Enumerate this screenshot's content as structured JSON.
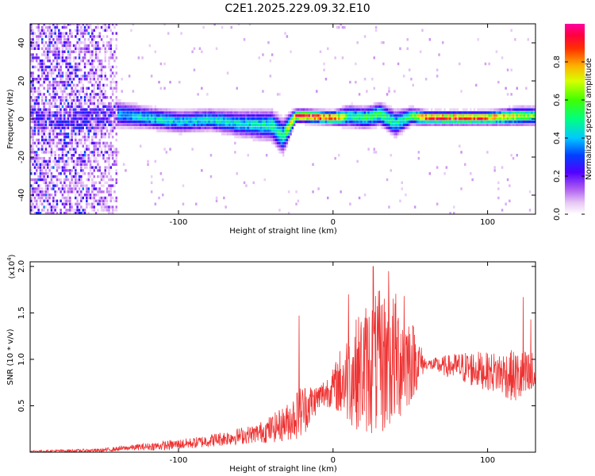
{
  "title": "C2E1.2025.229.09.32.E10",
  "chart_data": [
    {
      "type": "heatmap",
      "xlabel": "Height of straight line (km)",
      "ylabel": "Frequency (Hz)",
      "xlim": [
        -196,
        131
      ],
      "ylim": [
        -50,
        50
      ],
      "x_ticks": [
        -100,
        0,
        100
      ],
      "y_ticks": [
        -40,
        -20,
        0,
        20,
        40
      ],
      "colorbar": {
        "label": "Normalized spectral amplitude",
        "range": [
          0,
          1
        ],
        "ticks": [
          "0.0",
          "0.2",
          "0.4",
          "0.6",
          "0.8"
        ],
        "colormap": "white-violet-blue-cyan-green-yellow-red-magenta"
      },
      "signal_band": {
        "x": [
          -195,
          -150,
          -140,
          -120,
          -100,
          -80,
          -60,
          -40,
          -33,
          -25,
          -20,
          0,
          10,
          20,
          30,
          40,
          50,
          60,
          80,
          100,
          120,
          131
        ],
        "center_hz": [
          0,
          0,
          2,
          0,
          -2,
          -1,
          -3,
          -4,
          -10,
          1,
          1,
          0,
          1,
          0,
          2,
          -3,
          1,
          0,
          0,
          0,
          1,
          1
        ],
        "peak_amplitude": [
          0.25,
          0.3,
          0.4,
          0.45,
          0.45,
          0.45,
          0.45,
          0.5,
          0.5,
          0.9,
          0.95,
          0.95,
          0.5,
          0.55,
          0.6,
          0.5,
          0.55,
          0.95,
          0.95,
          0.9,
          0.7,
          0.6
        ],
        "spread_hz": [
          50,
          50,
          6,
          5,
          5,
          5,
          6,
          7,
          8,
          3,
          3,
          3,
          5,
          5,
          5,
          6,
          4,
          3,
          3,
          3,
          4,
          4
        ]
      }
    },
    {
      "type": "line",
      "xlabel": "Height of straight line (km)",
      "ylabel": "SNR (10 * v/v)",
      "scale_label": "(x10",
      "scale_exp": "4",
      "scale_close": ")",
      "xlim": [
        -196,
        131
      ],
      "ylim": [
        0,
        2.05
      ],
      "x_ticks": [
        -100,
        0,
        100
      ],
      "y_ticks": [
        "0.5",
        "1.0",
        "1.5",
        "2.0"
      ],
      "color": "#ee3333",
      "envelope": {
        "x": [
          -196,
          -150,
          -130,
          -110,
          -90,
          -70,
          -50,
          -40,
          -30,
          -20,
          -10,
          0,
          5,
          10,
          20,
          30,
          40,
          50,
          60,
          70,
          80,
          90,
          100,
          110,
          120,
          131
        ],
        "mean": [
          0.01,
          0.02,
          0.05,
          0.07,
          0.1,
          0.15,
          0.2,
          0.25,
          0.32,
          0.45,
          0.58,
          0.7,
          0.75,
          0.8,
          0.9,
          0.95,
          1.0,
          1.0,
          0.95,
          0.93,
          0.92,
          0.9,
          0.87,
          0.85,
          0.8,
          0.8
        ],
        "amplitude": [
          0.01,
          0.02,
          0.03,
          0.05,
          0.06,
          0.08,
          0.1,
          0.15,
          0.2,
          0.3,
          0.15,
          0.2,
          0.4,
          0.5,
          0.7,
          0.8,
          0.75,
          0.5,
          0.05,
          0.1,
          0.15,
          0.2,
          0.2,
          0.25,
          0.3,
          0.3
        ]
      },
      "spikes": [
        {
          "x": -22,
          "y": 1.47
        },
        {
          "x": 10,
          "y": 1.7
        },
        {
          "x": 26,
          "y": 2.0
        },
        {
          "x": 36,
          "y": 1.95
        },
        {
          "x": 46,
          "y": 1.68
        },
        {
          "x": 123,
          "y": 1.67
        },
        {
          "x": 128,
          "y": 1.43
        }
      ]
    }
  ]
}
